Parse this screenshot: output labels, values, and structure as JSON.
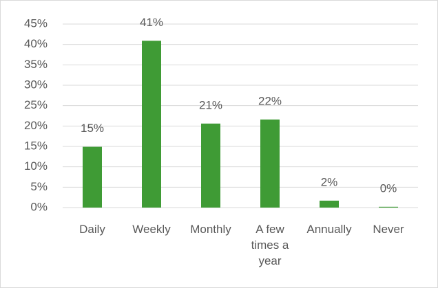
{
  "chart_data": {
    "type": "bar",
    "categories": [
      "Daily",
      "Weekly",
      "Monthly",
      "A few times a year",
      "Annually",
      "Never"
    ],
    "values": [
      14.9,
      40.9,
      20.6,
      21.6,
      1.7,
      0.2
    ],
    "value_labels": [
      "15%",
      "41%",
      "21%",
      "22%",
      "2%",
      "0%"
    ],
    "color": "#3f9b35",
    "ylim": [
      0,
      45
    ],
    "yticks": [
      {
        "value": 0,
        "label": "0%"
      },
      {
        "value": 5,
        "label": "5%"
      },
      {
        "value": 10,
        "label": "10%"
      },
      {
        "value": 15,
        "label": "15%"
      },
      {
        "value": 20,
        "label": "20%"
      },
      {
        "value": 25,
        "label": "25%"
      },
      {
        "value": 30,
        "label": "30%"
      },
      {
        "value": 35,
        "label": "35%"
      },
      {
        "value": 40,
        "label": "40%"
      },
      {
        "value": 45,
        "label": "45%"
      }
    ],
    "grid": true
  }
}
